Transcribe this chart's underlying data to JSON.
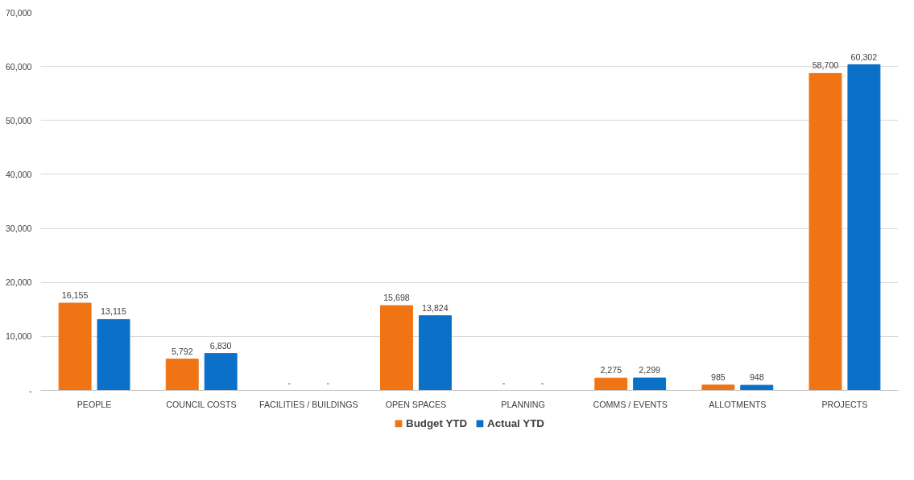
{
  "chart_data": {
    "type": "bar",
    "categories": [
      "PEOPLE",
      "COUNCIL COSTS",
      "FACILITIES / BUILDINGS",
      "OPEN SPACES",
      "PLANNING",
      "COMMS / EVENTS",
      "ALLOTMENTS",
      "PROJECTS"
    ],
    "series": [
      {
        "name": "Budget YTD",
        "color": "#f07414",
        "values": [
          16155,
          5792,
          0,
          15698,
          0,
          2275,
          985,
          58700
        ],
        "value_labels": [
          "16,155",
          "5,792",
          "-",
          "15,698",
          "-",
          "2,275",
          "985",
          "58,700"
        ]
      },
      {
        "name": "Actual YTD",
        "color": "#0a70c8",
        "values": [
          13115,
          6830,
          0,
          13824,
          0,
          2299,
          948,
          60302
        ],
        "value_labels": [
          "13,115",
          "6,830",
          "-",
          "13,824",
          "-",
          "2,299",
          "948",
          "60,302"
        ]
      }
    ],
    "ylim": [
      0,
      70000
    ],
    "yticks": [
      {
        "value": 0,
        "label": "-"
      },
      {
        "value": 10000,
        "label": "10,000"
      },
      {
        "value": 20000,
        "label": "20,000"
      },
      {
        "value": 30000,
        "label": "30,000"
      },
      {
        "value": 40000,
        "label": "40,000"
      },
      {
        "value": 50000,
        "label": "50,000"
      },
      {
        "value": 60000,
        "label": "60,000"
      },
      {
        "value": 70000,
        "label": "70,000"
      }
    ],
    "grid": "y",
    "legend": "bottom"
  }
}
